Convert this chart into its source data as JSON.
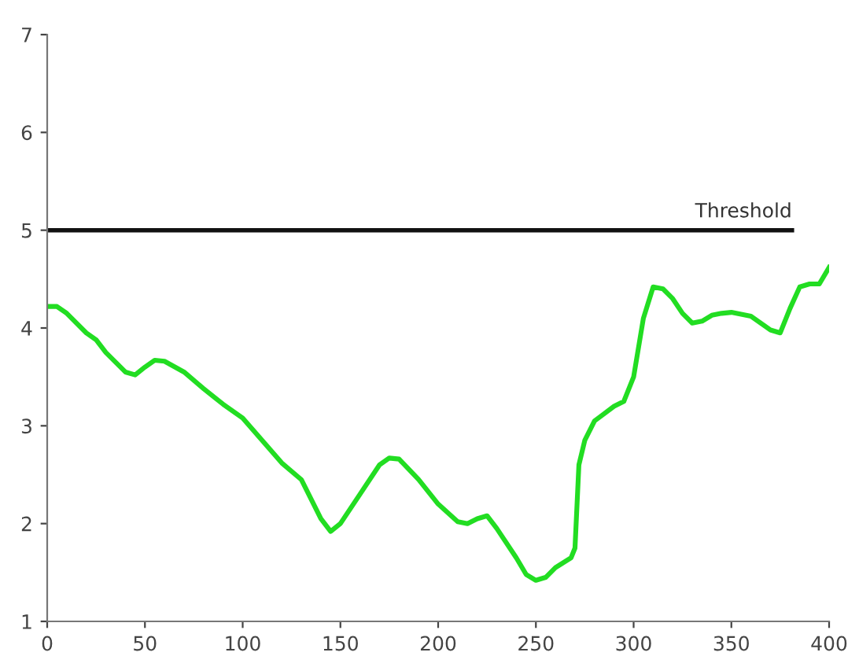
{
  "chart_data": {
    "type": "line",
    "xlim": [
      0,
      400
    ],
    "ylim": [
      1,
      7
    ],
    "xticks": [
      0,
      50,
      100,
      150,
      200,
      250,
      300,
      350,
      400
    ],
    "yticks": [
      1,
      2,
      3,
      4,
      5,
      6,
      7
    ],
    "grid": false,
    "legend": false,
    "marker": "none",
    "line_style": "solid",
    "series": [
      {
        "color": "#22dd22",
        "x": [
          0,
          5,
          10,
          20,
          25,
          30,
          40,
          45,
          50,
          55,
          60,
          70,
          80,
          90,
          100,
          110,
          120,
          130,
          140,
          145,
          150,
          160,
          170,
          175,
          180,
          190,
          200,
          210,
          215,
          220,
          225,
          230,
          240,
          245,
          250,
          255,
          260,
          268,
          270,
          272,
          275,
          280,
          290,
          295,
          300,
          305,
          310,
          315,
          320,
          325,
          330,
          335,
          340,
          345,
          350,
          360,
          365,
          370,
          375,
          380,
          385,
          390,
          395,
          400
        ],
        "values": [
          4.22,
          4.22,
          4.15,
          3.95,
          3.88,
          3.75,
          3.55,
          3.52,
          3.6,
          3.67,
          3.66,
          3.55,
          3.38,
          3.22,
          3.08,
          2.85,
          2.62,
          2.45,
          2.05,
          1.92,
          2.0,
          2.3,
          2.6,
          2.67,
          2.66,
          2.45,
          2.2,
          2.02,
          2.0,
          2.05,
          2.08,
          1.95,
          1.65,
          1.48,
          1.42,
          1.45,
          1.55,
          1.65,
          1.75,
          2.6,
          2.85,
          3.05,
          3.2,
          3.25,
          3.5,
          4.1,
          4.42,
          4.4,
          4.3,
          4.15,
          4.05,
          4.07,
          4.13,
          4.15,
          4.16,
          4.12,
          4.05,
          3.98,
          3.95,
          4.2,
          4.42,
          4.45,
          4.45,
          4.62
        ]
      },
      {
        "name": "Threshold",
        "color": "#111111",
        "x": [
          0,
          381
        ],
        "values": [
          5,
          5
        ]
      }
    ]
  }
}
